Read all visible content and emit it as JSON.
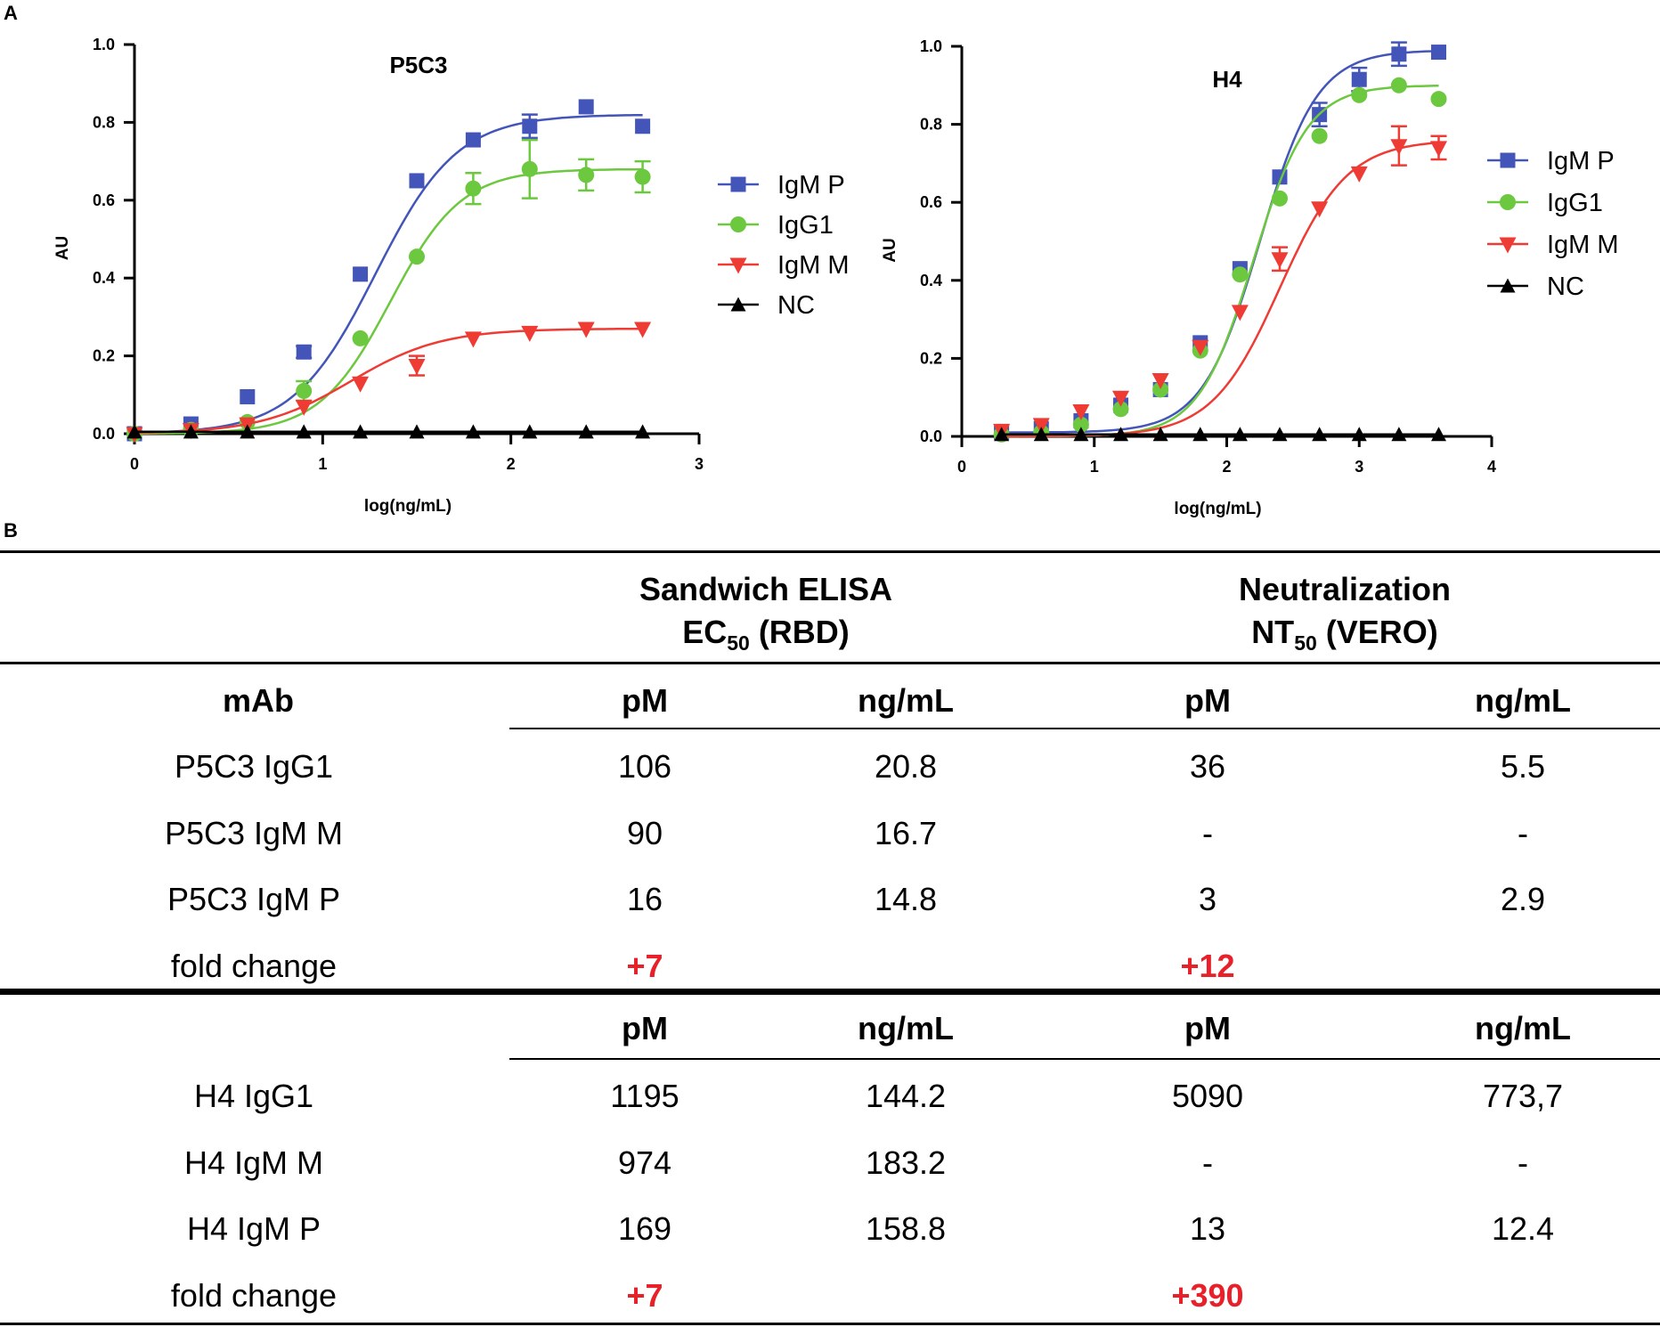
{
  "panels": {
    "a": "A",
    "b": "B"
  },
  "colors": {
    "IgM P": "#4355b8",
    "IgG1": "#6cc83e",
    "IgM M": "#ee3b34",
    "NC": "#000000"
  },
  "chart_data": [
    {
      "type": "line",
      "title": "P5C3",
      "xlabel": "log(ng/mL)",
      "ylabel": "AU",
      "xlim": [
        0,
        3
      ],
      "ylim": [
        0,
        1.0
      ],
      "xticks": [
        "0",
        "1",
        "2",
        "3"
      ],
      "yticks": [
        "0.0",
        "0.2",
        "0.4",
        "0.6",
        "0.8",
        "1.0"
      ],
      "legend_position": "right",
      "x": [
        0,
        0.3,
        0.6,
        0.9,
        1.2,
        1.5,
        1.8,
        2.1,
        2.4,
        2.7
      ],
      "series": [
        {
          "name": "IgM P",
          "marker": "square",
          "values": [
            0.0,
            0.025,
            0.095,
            0.21,
            0.41,
            0.65,
            0.755,
            0.79,
            0.84,
            0.79
          ],
          "errors": [
            0,
            0,
            0,
            0.015,
            0,
            0,
            0,
            0.03,
            0,
            0
          ],
          "fit": {
            "bottom": 0.0,
            "top": 0.82,
            "ec50": 1.28,
            "hill": 2.0
          }
        },
        {
          "name": "IgG1",
          "marker": "circle",
          "values": [
            0.0,
            0.01,
            0.03,
            0.11,
            0.245,
            0.455,
            0.63,
            0.68,
            0.665,
            0.66
          ],
          "errors": [
            0,
            0,
            0,
            0.025,
            0,
            0,
            0.04,
            0.075,
            0.04,
            0.04
          ],
          "fit": {
            "bottom": 0.0,
            "top": 0.68,
            "ec50": 1.36,
            "hill": 2.3
          }
        },
        {
          "name": "IgM M",
          "marker": "triangle-down",
          "values": [
            0.0,
            0.01,
            0.025,
            0.07,
            0.13,
            0.175,
            0.245,
            0.26,
            0.27,
            0.27
          ],
          "errors": [
            0,
            0,
            0,
            0,
            0,
            0.025,
            0,
            0,
            0,
            0
          ],
          "fit": {
            "bottom": 0.0,
            "top": 0.27,
            "ec50": 1.15,
            "hill": 1.8
          }
        },
        {
          "name": "NC",
          "marker": "triangle-up",
          "values": [
            0.005,
            0.005,
            0.005,
            0.005,
            0.005,
            0.005,
            0.005,
            0.005,
            0.005,
            0.005
          ],
          "errors": [
            0,
            0,
            0,
            0,
            0,
            0,
            0,
            0,
            0,
            0
          ],
          "fit": {
            "bottom": 0.005,
            "top": 0.005,
            "ec50": 1.0,
            "hill": 1.0
          }
        }
      ]
    },
    {
      "type": "line",
      "title": "H4",
      "xlabel": "log(ng/mL)",
      "ylabel": "AU",
      "xlim": [
        0,
        4
      ],
      "ylim": [
        0,
        1.0
      ],
      "xticks": [
        "0",
        "1",
        "2",
        "3",
        "4"
      ],
      "yticks": [
        "0.0",
        "0.2",
        "0.4",
        "0.6",
        "0.8",
        "1.0"
      ],
      "legend_position": "right",
      "x": [
        0.3,
        0.6,
        0.9,
        1.2,
        1.5,
        1.8,
        2.1,
        2.4,
        2.7,
        3.0,
        3.3,
        3.6
      ],
      "series": [
        {
          "name": "IgM P",
          "marker": "square",
          "values": [
            0.01,
            0.02,
            0.04,
            0.08,
            0.12,
            0.24,
            0.43,
            0.665,
            0.825,
            0.915,
            0.98,
            0.985
          ],
          "errors": [
            0,
            0,
            0,
            0,
            0,
            0,
            0,
            0,
            0.03,
            0.03,
            0.03,
            0
          ],
          "fit": {
            "bottom": 0.01,
            "top": 0.99,
            "ec50": 2.25,
            "hill": 2.0
          }
        },
        {
          "name": "IgG1",
          "marker": "circle",
          "values": [
            0.005,
            0.01,
            0.03,
            0.07,
            0.12,
            0.22,
            0.415,
            0.61,
            0.77,
            0.875,
            0.9,
            0.865
          ],
          "errors": [
            0,
            0,
            0,
            0,
            0,
            0,
            0,
            0,
            0,
            0,
            0,
            0
          ],
          "fit": {
            "bottom": 0.0,
            "top": 0.9,
            "ec50": 2.2,
            "hill": 2.1
          }
        },
        {
          "name": "IgM M",
          "marker": "triangle-down",
          "values": [
            0.015,
            0.03,
            0.065,
            0.1,
            0.145,
            0.23,
            0.32,
            0.455,
            0.585,
            0.675,
            0.745,
            0.74
          ],
          "errors": [
            0,
            0,
            0,
            0,
            0,
            0,
            0,
            0.03,
            0,
            0,
            0.05,
            0.03
          ],
          "fit": {
            "bottom": 0.0,
            "top": 0.76,
            "ec50": 2.4,
            "hill": 1.7
          }
        },
        {
          "name": "NC",
          "marker": "triangle-up",
          "values": [
            0.005,
            0.005,
            0.005,
            0.005,
            0.005,
            0.005,
            0.005,
            0.005,
            0.005,
            0.005,
            0.005,
            0.005
          ],
          "errors": [
            0,
            0,
            0,
            0,
            0,
            0,
            0,
            0,
            0,
            0,
            0,
            0
          ],
          "fit": {
            "bottom": 0.005,
            "top": 0.005,
            "ec50": 1.0,
            "hill": 1.0
          }
        }
      ]
    }
  ],
  "legend": [
    "IgM P",
    "IgG1",
    "IgM M",
    "NC"
  ],
  "table": {
    "group1_line1": "Sandwich ELISA",
    "group1_line2_main": "EC",
    "group1_line2_sub": "50",
    "group1_line2_rest": " (RBD)",
    "group2_line1": "Neutralization",
    "group2_line2_main": "NT",
    "group2_line2_sub": "50",
    "group2_line2_rest": " (VERO)",
    "mab_header": "mAb",
    "col_pm": "pM",
    "col_ngml": "ng/mL",
    "section1": [
      [
        "P5C3 IgG1",
        "106",
        "20.8",
        "36",
        "5.5"
      ],
      [
        "P5C3 IgM M",
        "90",
        "16.7",
        "-",
        "-"
      ],
      [
        "P5C3 IgM P",
        "16",
        "14.8",
        "3",
        "2.9"
      ]
    ],
    "section1_fold": [
      "fold change",
      "+7",
      "+12"
    ],
    "section2": [
      [
        "H4 IgG1",
        "1195",
        "144.2",
        "5090",
        "773,7"
      ],
      [
        "H4 IgM M",
        "974",
        "183.2",
        "-",
        "-"
      ],
      [
        "H4 IgM P",
        "169",
        "158.8",
        "13",
        "12.4"
      ]
    ],
    "section2_fold": [
      "fold change",
      "+7",
      "+390"
    ]
  }
}
